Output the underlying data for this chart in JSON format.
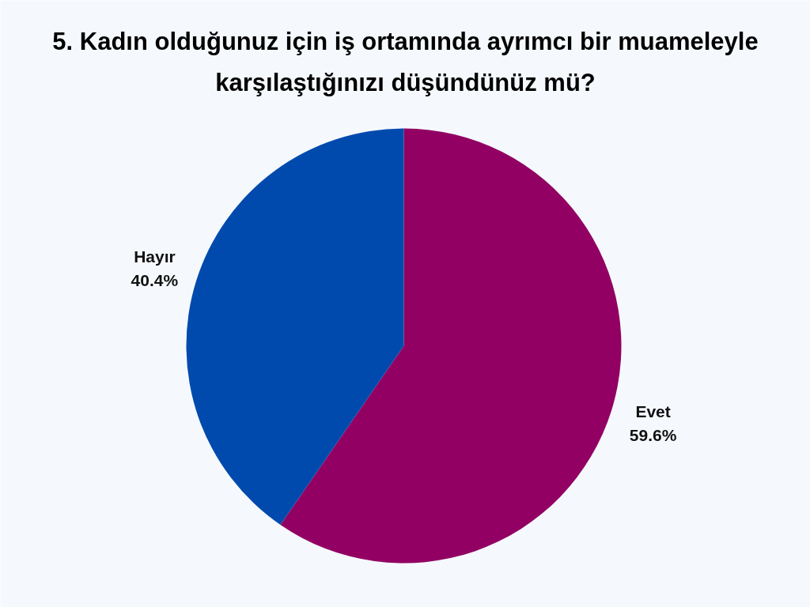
{
  "chart_data": {
    "type": "pie",
    "title": "5. Kadın olduğunuz için iş ortamında ayrımcı bir muameleyle karşılaştığınızı düşündünüz mü?",
    "categories": [
      "Evet",
      "Hayır"
    ],
    "values": [
      59.6,
      40.4
    ],
    "colors": [
      "#920063",
      "#004aad"
    ],
    "value_labels": [
      "59.6%",
      "40.4%"
    ]
  }
}
